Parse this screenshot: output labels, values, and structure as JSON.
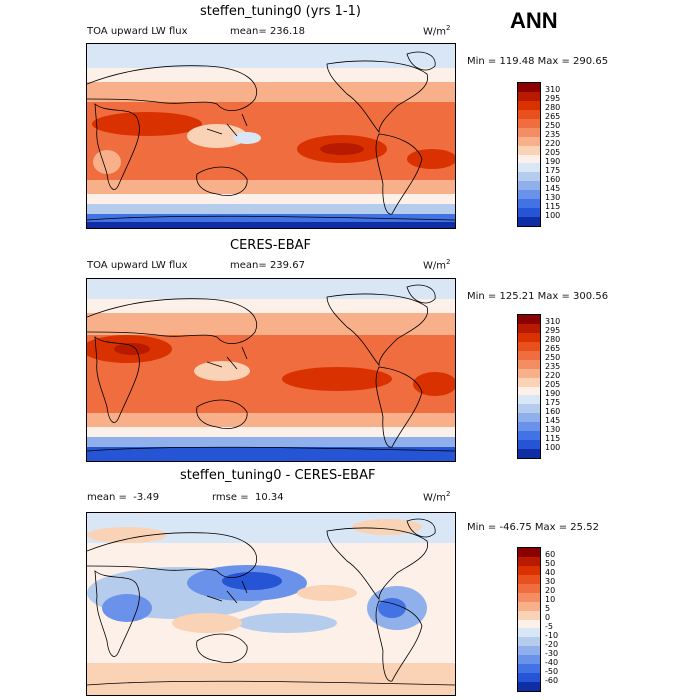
{
  "header": {
    "season": "ANN"
  },
  "panels": [
    {
      "title": "steffen_tuning0 (yrs 1-1)",
      "variable": "TOA upward LW flux",
      "stat_label": "mean=",
      "stat_value": "236.18",
      "units_base": "W/m",
      "units_exp": "2",
      "minmax": "Min = 119.48 Max = 290.65",
      "colorbar": {
        "labels": [
          "310",
          "295",
          "280",
          "265",
          "250",
          "235",
          "220",
          "205",
          "190",
          "175",
          "160",
          "145",
          "130",
          "115",
          "100"
        ],
        "colors": [
          "#8b0000",
          "#b81a00",
          "#d93200",
          "#e8501e",
          "#ef6d3e",
          "#f58d62",
          "#f7b08a",
          "#fad2b6",
          "#fdf0e8",
          "#d8e6f5",
          "#b6ccec",
          "#8fb0ea",
          "#6a92ea",
          "#4272e3",
          "#2554d4",
          "#0f2ea4"
        ]
      }
    },
    {
      "title": "CERES-EBAF",
      "variable": "TOA upward LW flux",
      "stat_label": "mean=",
      "stat_value": "239.67",
      "units_base": "W/m",
      "units_exp": "2",
      "minmax": "Min = 125.21 Max = 300.56",
      "colorbar": {
        "labels": [
          "310",
          "295",
          "280",
          "265",
          "250",
          "235",
          "220",
          "205",
          "190",
          "175",
          "160",
          "145",
          "130",
          "115",
          "100"
        ],
        "colors": [
          "#8b0000",
          "#b81a00",
          "#d93200",
          "#e8501e",
          "#ef6d3e",
          "#f58d62",
          "#f7b08a",
          "#fad2b6",
          "#fdf0e8",
          "#d8e6f5",
          "#b6ccec",
          "#8fb0ea",
          "#6a92ea",
          "#4272e3",
          "#2554d4",
          "#0f2ea4"
        ]
      }
    },
    {
      "title": "steffen_tuning0 - CERES-EBAF",
      "mean_label": "mean =",
      "mean_value": "-3.49",
      "rmse_label": "rmse =",
      "rmse_value": "10.34",
      "units_base": "W/m",
      "units_exp": "2",
      "minmax": "Min = -46.75 Max =  25.52",
      "colorbar": {
        "labels": [
          "60",
          "50",
          "40",
          "30",
          "20",
          "10",
          "5",
          "0",
          "-5",
          "-10",
          "-20",
          "-30",
          "-40",
          "-50",
          "-60"
        ],
        "colors": [
          "#8b0000",
          "#b81a00",
          "#d93200",
          "#e8501e",
          "#ef6d3e",
          "#f58d62",
          "#f7b08a",
          "#fad2b6",
          "#fdf0e8",
          "#d8e6f5",
          "#b6ccec",
          "#8fb0ea",
          "#6a92ea",
          "#4272e3",
          "#2554d4",
          "#0f2ea4"
        ]
      }
    }
  ]
}
